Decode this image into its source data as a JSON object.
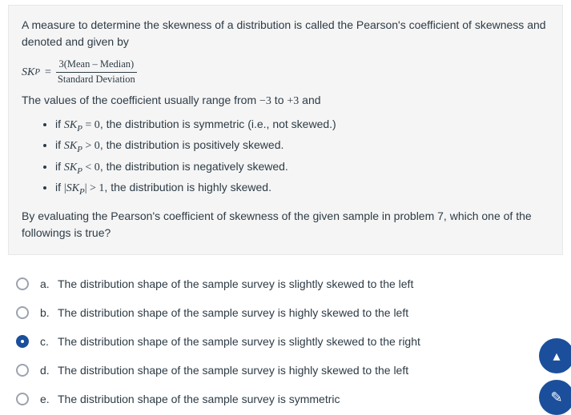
{
  "colors": {
    "text": "#2d3b45",
    "box_bg": "#f5f5f5",
    "box_border": "#e8e8e8",
    "radio_border": "#9ca3af",
    "accent": "#1b4f9c",
    "page_bg": "#ffffff"
  },
  "question": {
    "intro": "A measure to determine the skewness of a distribution is called the Pearson's coefficient of skewness and denoted and given by",
    "formula": {
      "lhs_sym": "SK",
      "lhs_sub": "P",
      "eq": "=",
      "num": "3(Mean – Median)",
      "den": "Standard Deviation"
    },
    "range_prefix": "The values of the coefficient usually range from ",
    "range_low": "−3",
    "range_mid": " to ",
    "range_high": "+3",
    "range_suffix": " and",
    "cases": [
      {
        "pre": "if ",
        "sym": "SK",
        "sub": "P",
        "rel": " = 0",
        "post": ", the distribution is symmetric (i.e., not skewed.)",
        "abs": false
      },
      {
        "pre": "if ",
        "sym": "SK",
        "sub": "P",
        "rel": " > 0",
        "post": ", the distribution is positively skewed.",
        "abs": false
      },
      {
        "pre": "if ",
        "sym": "SK",
        "sub": "P",
        "rel": " < 0",
        "post": ", the distribution is negatively skewed.",
        "abs": false
      },
      {
        "pre": "if ",
        "sym": "SK",
        "sub": "P",
        "rel": " > 1",
        "post": ", the distribution is highly skewed.",
        "abs": true
      }
    ],
    "closing": "By evaluating the Pearson's coefficient of skewness of the given sample in problem 7, which one of the followings is true?"
  },
  "options": [
    {
      "letter": "a.",
      "text": "The distribution shape of the sample survey is slightly skewed to the left",
      "selected": false
    },
    {
      "letter": "b.",
      "text": "The distribution shape of the sample survey is highly skewed to the left",
      "selected": false
    },
    {
      "letter": "c.",
      "text": "The distribution shape of the sample survey is slightly skewed to the right",
      "selected": true
    },
    {
      "letter": "d.",
      "text": "The distribution shape of the sample survey is highly skewed to the left",
      "selected": false
    },
    {
      "letter": "e.",
      "text": "The distribution shape of the sample survey is symmetric",
      "selected": false
    }
  ],
  "fab": {
    "top_icon": "▴",
    "bot_icon": "✎"
  }
}
